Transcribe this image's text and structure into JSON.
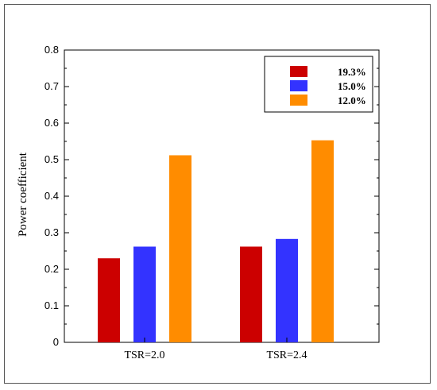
{
  "chart_data": {
    "type": "bar",
    "title": "",
    "xlabel": "",
    "ylabel": "Power coefficient",
    "categories": [
      "TSR=2.0",
      "TSR=2.4"
    ],
    "series": [
      {
        "name": "19.3%",
        "color": "#cc0000",
        "values": [
          0.23,
          0.262
        ]
      },
      {
        "name": "15.0%",
        "color": "#3333ff",
        "values": [
          0.262,
          0.283
        ]
      },
      {
        "name": "12.0%",
        "color": "#ff8c00",
        "values": [
          0.512,
          0.553
        ]
      }
    ],
    "ylim": [
      0,
      0.8
    ],
    "yticks": [
      "0",
      "0.1",
      "0.2",
      "0.3",
      "0.4",
      "0.5",
      "0.6",
      "0.7",
      "0.8"
    ],
    "grid": false,
    "legend_position": "top-right"
  }
}
